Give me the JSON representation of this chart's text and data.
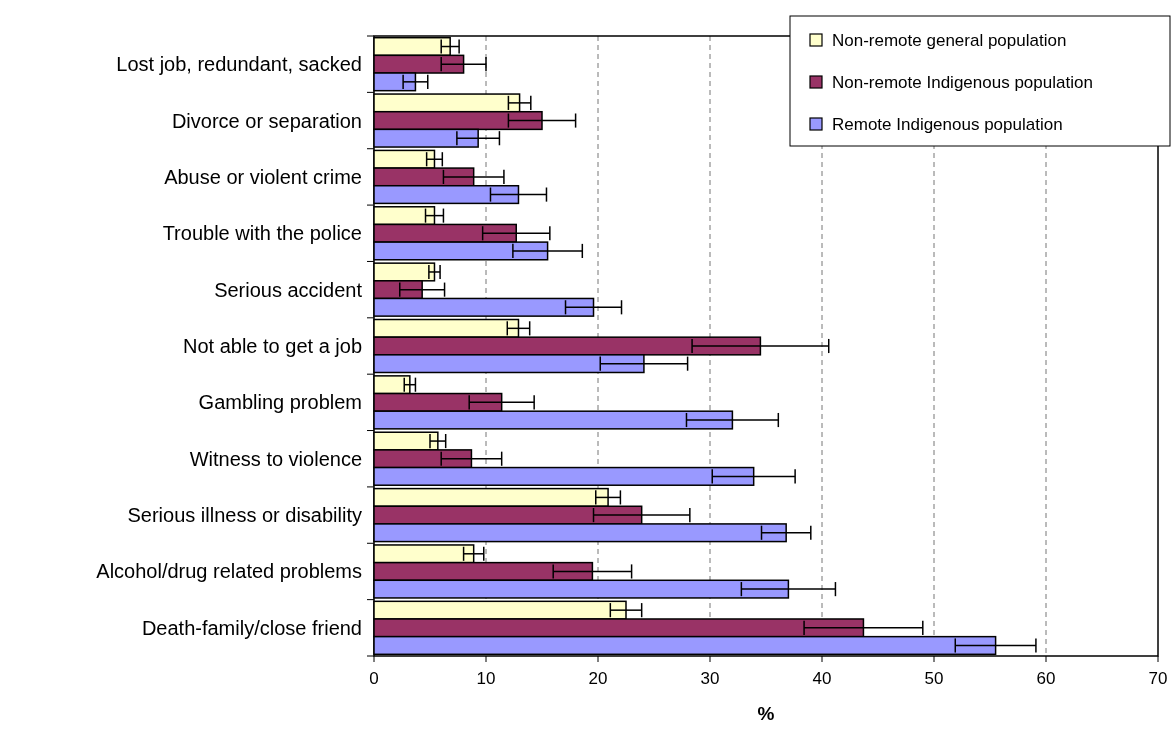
{
  "chart_data": {
    "type": "bar",
    "orientation": "horizontal",
    "xlabel": "%",
    "categories": [
      "Lost job, redundant, sacked",
      "Divorce or separation",
      "Abuse or violent crime",
      "Trouble with the police",
      "Serious accident",
      "Not able to get a job",
      "Gambling problem",
      "Witness to violence",
      "Serious illness or disability",
      "Alcohol/drug related problems",
      "Death-family/close friend"
    ],
    "series": [
      {
        "name": "Non-remote general population",
        "color": "#ffffcc",
        "values": [
          6.8,
          13.0,
          5.4,
          5.4,
          5.4,
          12.9,
          3.2,
          5.7,
          20.9,
          8.9,
          22.5
        ],
        "errors": [
          0.8,
          1.0,
          0.7,
          0.8,
          0.5,
          1.0,
          0.5,
          0.7,
          1.1,
          0.9,
          1.4
        ]
      },
      {
        "name": "Non-remote Indigenous population",
        "color": "#993366",
        "values": [
          8.0,
          15.0,
          8.9,
          12.7,
          4.3,
          34.5,
          11.4,
          8.7,
          23.9,
          19.5,
          43.7
        ],
        "errors": [
          2.0,
          3.0,
          2.7,
          3.0,
          2.0,
          6.1,
          2.9,
          2.7,
          4.3,
          3.5,
          5.3
        ]
      },
      {
        "name": "Remote Indigenous population",
        "color": "#9999ff",
        "values": [
          3.7,
          9.3,
          12.9,
          15.5,
          19.6,
          24.1,
          32.0,
          33.9,
          36.8,
          37.0,
          55.5
        ],
        "errors": [
          1.1,
          1.9,
          2.5,
          3.1,
          2.5,
          3.9,
          4.1,
          3.7,
          2.2,
          4.2,
          3.6
        ]
      }
    ],
    "xlim": [
      0,
      70
    ],
    "xticks": [
      0,
      10,
      20,
      30,
      40,
      50,
      60,
      70
    ],
    "grid": "x",
    "legend": "top right"
  }
}
